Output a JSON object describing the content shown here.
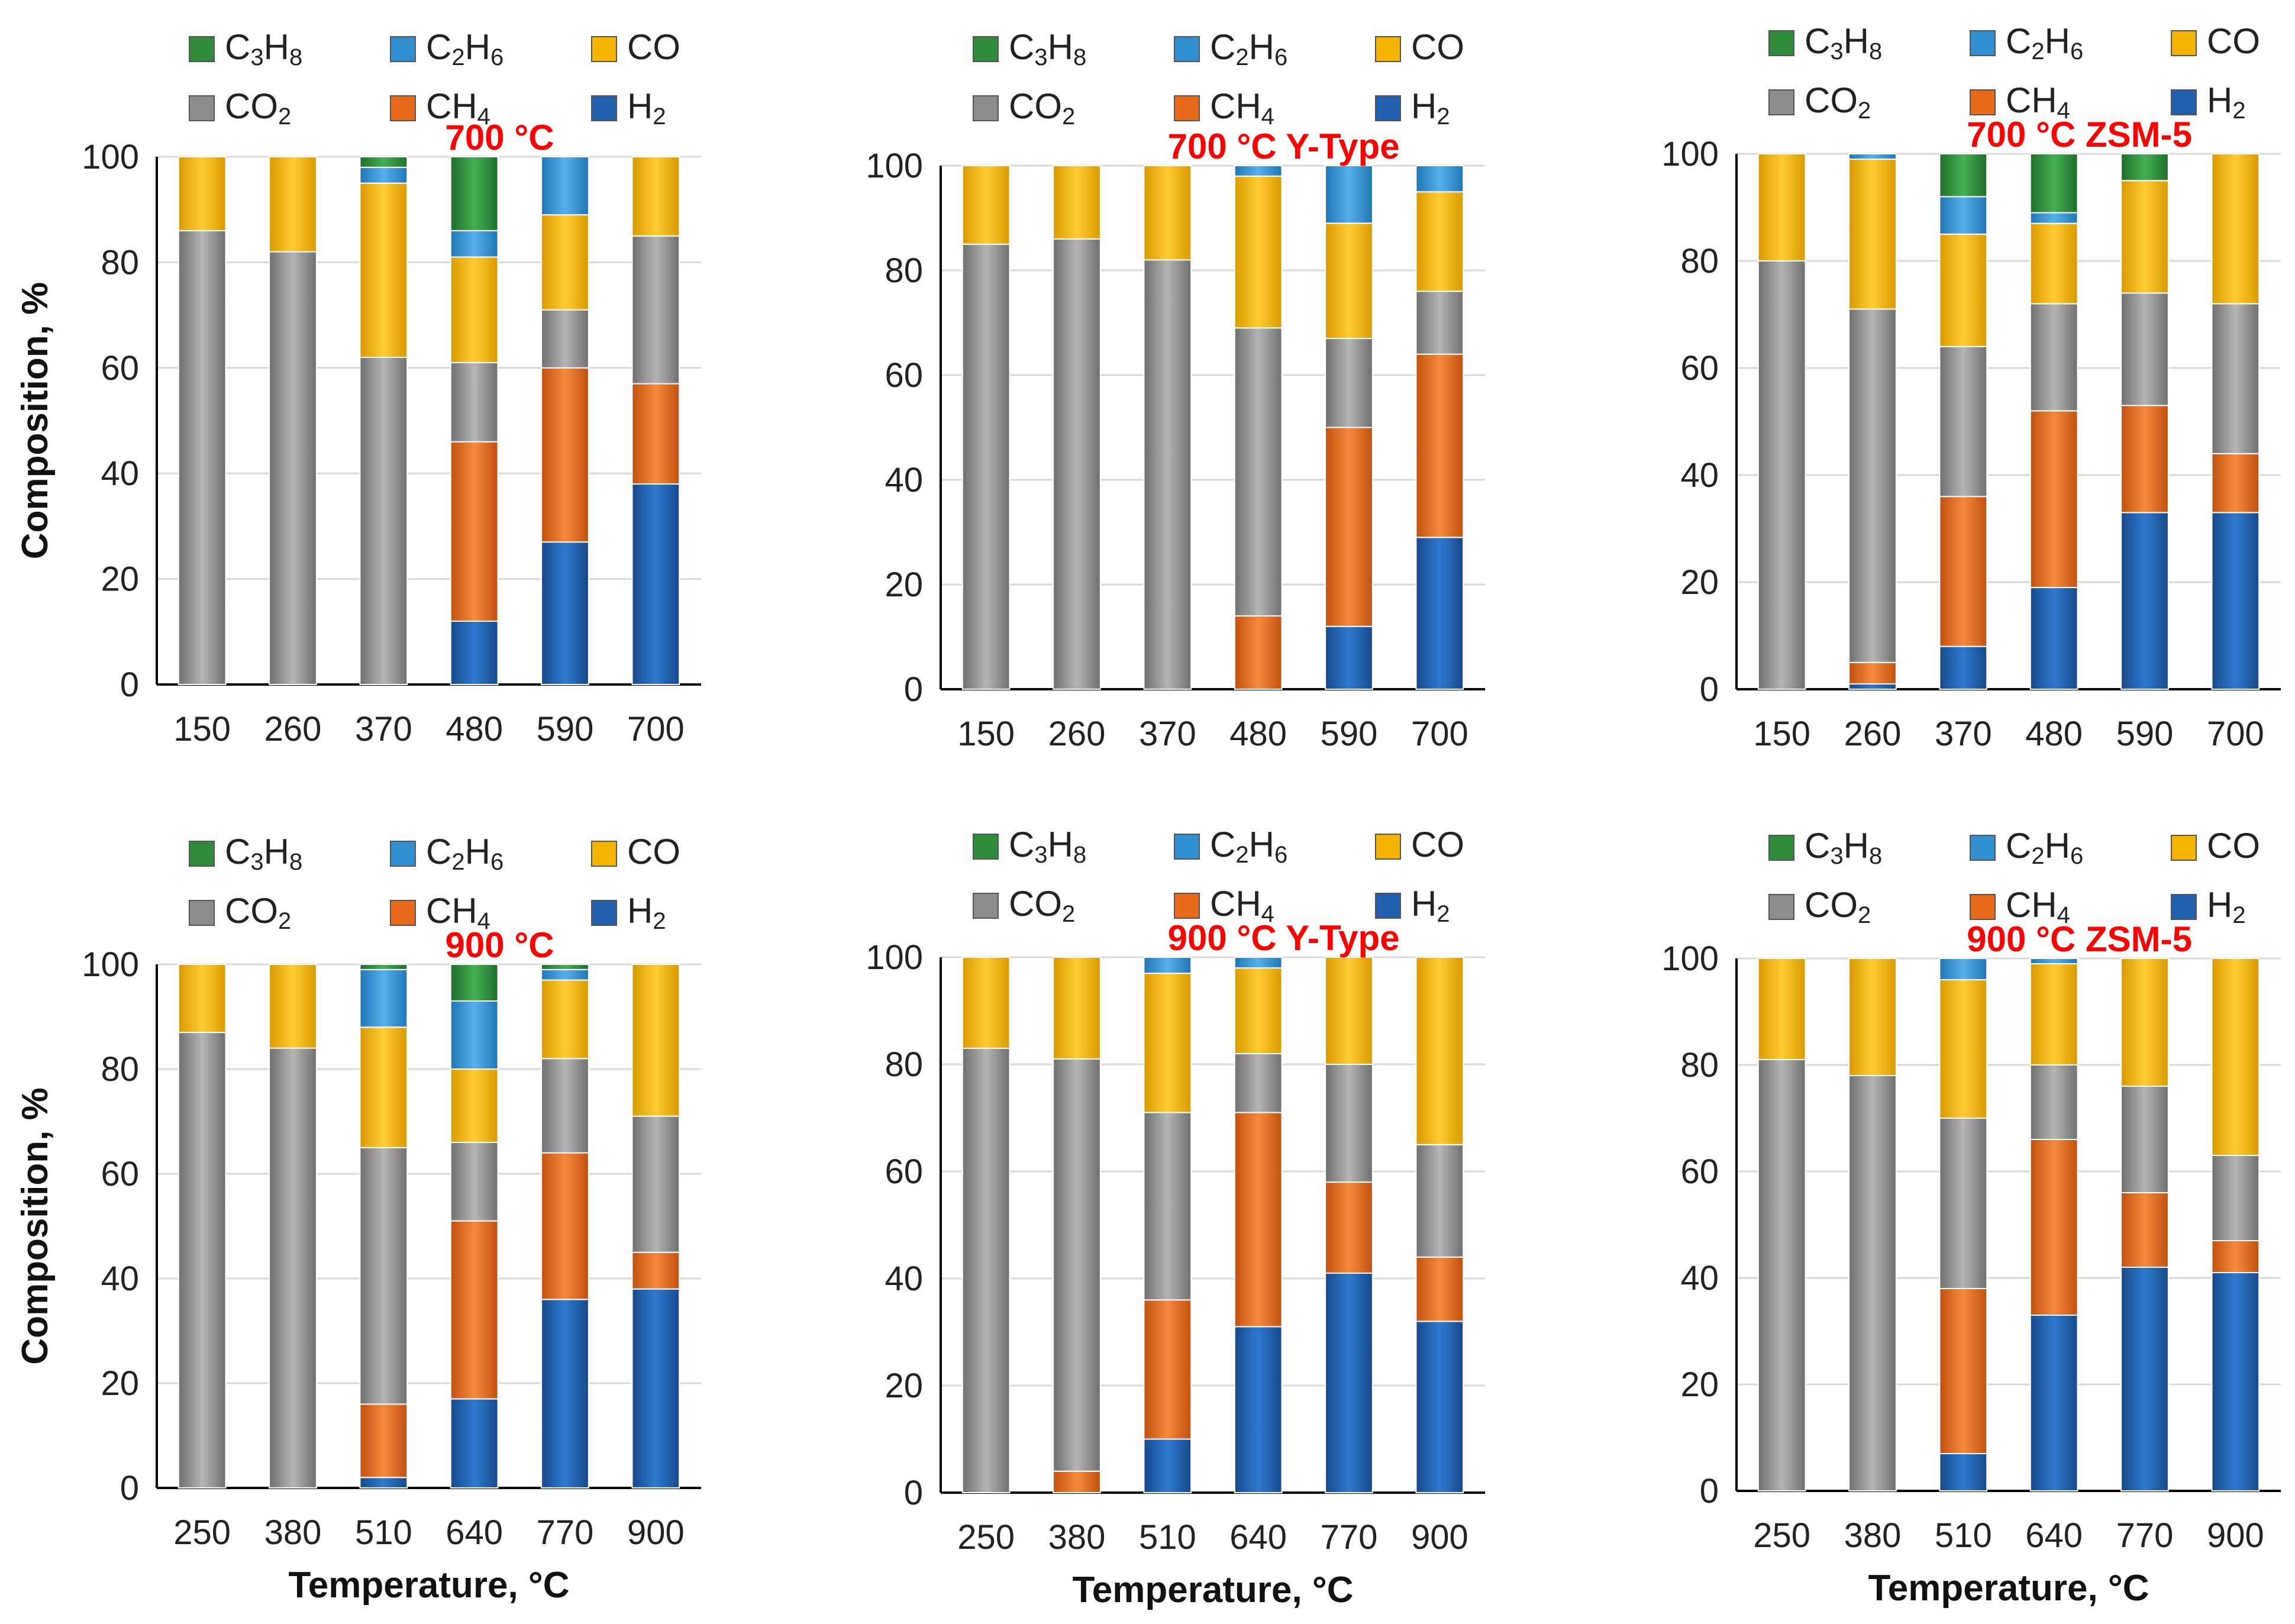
{
  "figure": {
    "y_axis_label": "Composition, %",
    "x_axis_label": "Temperature, °C",
    "title_color": "#ff0000"
  },
  "legend": [
    {
      "base": "C",
      "parts": [
        {
          "t": "C"
        },
        {
          "t": "3",
          "sub": true
        },
        {
          "t": "H"
        },
        {
          "t": "8",
          "sub": true
        }
      ],
      "color": "#2e8b3a"
    },
    {
      "base": "C",
      "parts": [
        {
          "t": "C"
        },
        {
          "t": "2",
          "sub": true
        },
        {
          "t": "H"
        },
        {
          "t": "6",
          "sub": true
        }
      ],
      "color": "#2f8fd0"
    },
    {
      "base": "CO",
      "parts": [
        {
          "t": "CO"
        }
      ],
      "color": "#f4b400"
    },
    {
      "base": "C",
      "parts": [
        {
          "t": "CO"
        },
        {
          "t": "2",
          "sub": true
        }
      ],
      "color": "#8c8c8c"
    },
    {
      "base": "C",
      "parts": [
        {
          "t": "CH"
        },
        {
          "t": "4",
          "sub": true
        }
      ],
      "color": "#e86a1a"
    },
    {
      "base": "H",
      "parts": [
        {
          "t": "H"
        },
        {
          "t": "2",
          "sub": true
        }
      ],
      "color": "#1f5fae"
    }
  ],
  "chart_data": [
    {
      "type": "bar",
      "stacked": true,
      "title": "700 °C",
      "categories": [
        "150",
        "260",
        "370",
        "480",
        "590",
        "700"
      ],
      "ylim": [
        0,
        100
      ],
      "yticks": [
        0,
        20,
        40,
        60,
        80,
        100
      ],
      "xlabel": "",
      "ylabel": "Composition, %",
      "series": [
        {
          "name": "H2",
          "values": [
            0,
            0,
            0,
            12,
            27,
            38
          ]
        },
        {
          "name": "CH4",
          "values": [
            0,
            0,
            0,
            34,
            33,
            19
          ]
        },
        {
          "name": "CO2",
          "values": [
            86,
            82,
            62,
            15,
            11,
            28
          ]
        },
        {
          "name": "CO",
          "values": [
            14,
            18,
            33,
            20,
            18,
            15
          ]
        },
        {
          "name": "C2H6",
          "values": [
            0,
            0,
            3,
            5,
            11,
            0
          ]
        },
        {
          "name": "C3H8",
          "values": [
            0,
            0,
            2,
            14,
            0,
            0
          ]
        }
      ]
    },
    {
      "type": "bar",
      "stacked": true,
      "title": "700 °C Y-Type",
      "categories": [
        "150",
        "260",
        "370",
        "480",
        "590",
        "700"
      ],
      "ylim": [
        0,
        100
      ],
      "yticks": [
        0,
        20,
        40,
        60,
        80,
        100
      ],
      "xlabel": "",
      "ylabel": "",
      "series": [
        {
          "name": "H2",
          "values": [
            0,
            0,
            0,
            0,
            12,
            29
          ]
        },
        {
          "name": "CH4",
          "values": [
            0,
            0,
            0,
            14,
            38,
            35
          ]
        },
        {
          "name": "CO2",
          "values": [
            85,
            86,
            82,
            55,
            17,
            12
          ]
        },
        {
          "name": "CO",
          "values": [
            15,
            14,
            18,
            29,
            22,
            19
          ]
        },
        {
          "name": "C2H6",
          "values": [
            0,
            0,
            0,
            2,
            11,
            5
          ]
        },
        {
          "name": "C3H8",
          "values": [
            0,
            0,
            0,
            0,
            0,
            0
          ]
        }
      ]
    },
    {
      "type": "bar",
      "stacked": true,
      "title": "700 °C ZSM-5",
      "categories": [
        "150",
        "260",
        "370",
        "480",
        "590",
        "700"
      ],
      "ylim": [
        0,
        100
      ],
      "yticks": [
        0,
        20,
        40,
        60,
        80,
        100
      ],
      "xlabel": "",
      "ylabel": "",
      "series": [
        {
          "name": "H2",
          "values": [
            0,
            1,
            8,
            19,
            33,
            33
          ]
        },
        {
          "name": "CH4",
          "values": [
            0,
            4,
            28,
            33,
            20,
            11
          ]
        },
        {
          "name": "CO2",
          "values": [
            80,
            66,
            28,
            20,
            21,
            28
          ]
        },
        {
          "name": "CO",
          "values": [
            20,
            28,
            21,
            15,
            21,
            28
          ]
        },
        {
          "name": "C2H6",
          "values": [
            0,
            1,
            7,
            2,
            0,
            0
          ]
        },
        {
          "name": "C3H8",
          "values": [
            0,
            0,
            8,
            11,
            5,
            0
          ]
        }
      ]
    },
    {
      "type": "bar",
      "stacked": true,
      "title": "900 °C",
      "categories": [
        "250",
        "380",
        "510",
        "640",
        "770",
        "900"
      ],
      "ylim": [
        0,
        100
      ],
      "yticks": [
        0,
        20,
        40,
        60,
        80,
        100
      ],
      "xlabel": "Temperature, °C",
      "ylabel": "Composition, %",
      "series": [
        {
          "name": "H2",
          "values": [
            0,
            0,
            2,
            17,
            36,
            38
          ]
        },
        {
          "name": "CH4",
          "values": [
            0,
            0,
            14,
            34,
            28,
            7
          ]
        },
        {
          "name": "CO2",
          "values": [
            87,
            84,
            49,
            15,
            18,
            26
          ]
        },
        {
          "name": "CO",
          "values": [
            13,
            16,
            23,
            14,
            15,
            29
          ]
        },
        {
          "name": "C2H6",
          "values": [
            0,
            0,
            11,
            13,
            2,
            0
          ]
        },
        {
          "name": "C3H8",
          "values": [
            0,
            0,
            1,
            7,
            1,
            0
          ]
        }
      ]
    },
    {
      "type": "bar",
      "stacked": true,
      "title": "900 °C Y-Type",
      "categories": [
        "250",
        "380",
        "510",
        "640",
        "770",
        "900"
      ],
      "ylim": [
        0,
        100
      ],
      "yticks": [
        0,
        20,
        40,
        60,
        80,
        100
      ],
      "xlabel": "Temperature, °C",
      "ylabel": "",
      "series": [
        {
          "name": "H2",
          "values": [
            0,
            0,
            10,
            31,
            41,
            32
          ]
        },
        {
          "name": "CH4",
          "values": [
            0,
            4,
            26,
            40,
            17,
            12
          ]
        },
        {
          "name": "CO2",
          "values": [
            83,
            77,
            35,
            11,
            22,
            21
          ]
        },
        {
          "name": "CO",
          "values": [
            17,
            19,
            26,
            16,
            20,
            35
          ]
        },
        {
          "name": "C2H6",
          "values": [
            0,
            0,
            3,
            2,
            0,
            0
          ]
        },
        {
          "name": "C3H8",
          "values": [
            0,
            0,
            0,
            0,
            0,
            0
          ]
        }
      ]
    },
    {
      "type": "bar",
      "stacked": true,
      "title": "900 °C ZSM-5",
      "categories": [
        "250",
        "380",
        "510",
        "640",
        "770",
        "900"
      ],
      "ylim": [
        0,
        100
      ],
      "yticks": [
        0,
        20,
        40,
        60,
        80,
        100
      ],
      "xlabel": "Temperature, °C",
      "ylabel": "",
      "series": [
        {
          "name": "H2",
          "values": [
            0,
            0,
            7,
            33,
            42,
            41
          ]
        },
        {
          "name": "CH4",
          "values": [
            0,
            0,
            31,
            33,
            14,
            6
          ]
        },
        {
          "name": "CO2",
          "values": [
            81,
            78,
            32,
            14,
            20,
            16
          ]
        },
        {
          "name": "CO",
          "values": [
            19,
            22,
            26,
            19,
            24,
            37
          ]
        },
        {
          "name": "C2H6",
          "values": [
            0,
            0,
            4,
            1,
            0,
            0
          ]
        },
        {
          "name": "C3H8",
          "values": [
            0,
            0,
            0,
            0,
            0,
            0
          ]
        }
      ]
    }
  ]
}
